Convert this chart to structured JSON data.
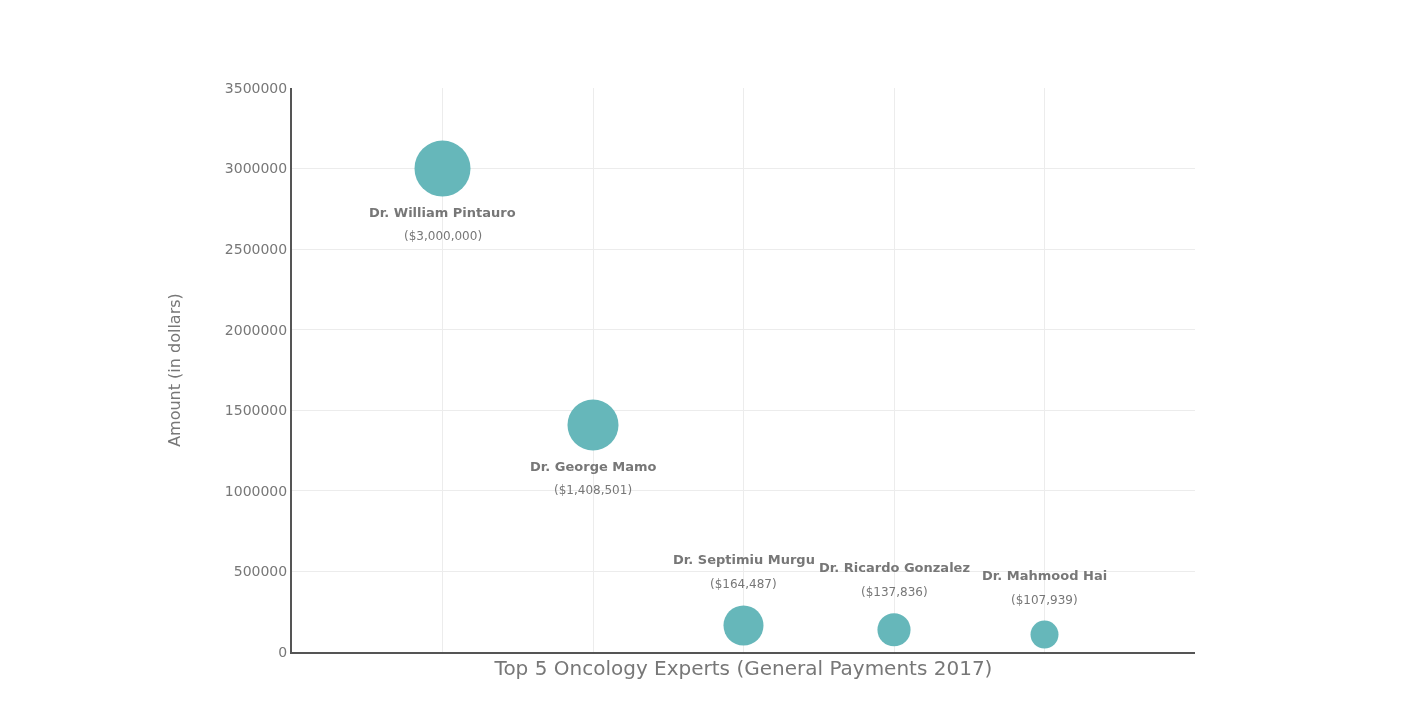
{
  "chart_data": {
    "type": "bubble",
    "xlabel": "Top 5 Oncology Experts (General Payments 2017)",
    "ylabel": "Amount (in dollars)",
    "categories": [
      "Dr. William Pintauro",
      "Dr. George Mamo",
      "Dr. Septimiu Murgu",
      "Dr. Ricardo Gonzalez",
      "Dr. Mahmood Hai"
    ],
    "values": [
      3000000,
      1408501,
      164487,
      137836,
      107939
    ],
    "sizes": [
      1,
      0.83,
      0.51,
      0.35,
      0.25
    ],
    "value_labels": [
      "($3,000,000)",
      "($1,408,501)",
      "($164,487)",
      "($137,836)",
      "($107,939)"
    ],
    "color": "#66b7ba",
    "ylim": [
      0,
      3500000
    ],
    "yticks": [
      0,
      500000,
      1000000,
      1500000,
      2000000,
      2500000,
      3000000,
      3500000
    ],
    "grid": true,
    "tick_labels": "y"
  }
}
